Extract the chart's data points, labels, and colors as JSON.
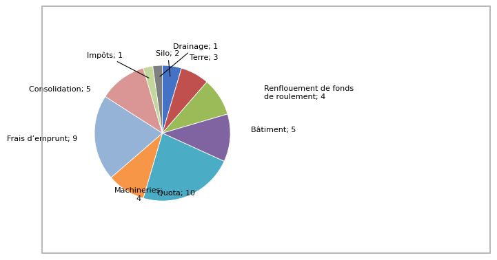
{
  "labels": [
    "Silo; 2",
    "Terre; 3",
    "Renflouement de fonds\nde roulement; 4",
    "Bâtiment; 5",
    "Quota; 10",
    "Machineries;\n4",
    "Frais d’emprunt; 9",
    "Consolidation; 5",
    "Impôts; 1",
    "Drainage; 1"
  ],
  "values": [
    2,
    3,
    4,
    5,
    10,
    4,
    9,
    5,
    1,
    1
  ],
  "colors": [
    "#4472C4",
    "#C0504D",
    "#9BBB59",
    "#8064A2",
    "#4BACC6",
    "#F79646",
    "#95B3D7",
    "#D99694",
    "#C3D69B",
    "#7F7F7F"
  ],
  "startangle": 90,
  "background_color": "#FFFFFF",
  "label_fontsize": 8,
  "label_positions": [
    [
      0.08,
      1.18,
      "center",
      true
    ],
    [
      0.4,
      1.12,
      "left",
      false
    ],
    [
      1.5,
      0.6,
      "left",
      false
    ],
    [
      1.3,
      0.05,
      "left",
      false
    ],
    [
      0.2,
      -0.88,
      "center",
      false
    ],
    [
      -0.35,
      -0.9,
      "center",
      false
    ],
    [
      -1.25,
      -0.08,
      "right",
      false
    ],
    [
      -1.05,
      0.65,
      "right",
      false
    ],
    [
      -0.58,
      1.15,
      "right",
      true
    ],
    [
      0.16,
      1.28,
      "left",
      true
    ]
  ]
}
